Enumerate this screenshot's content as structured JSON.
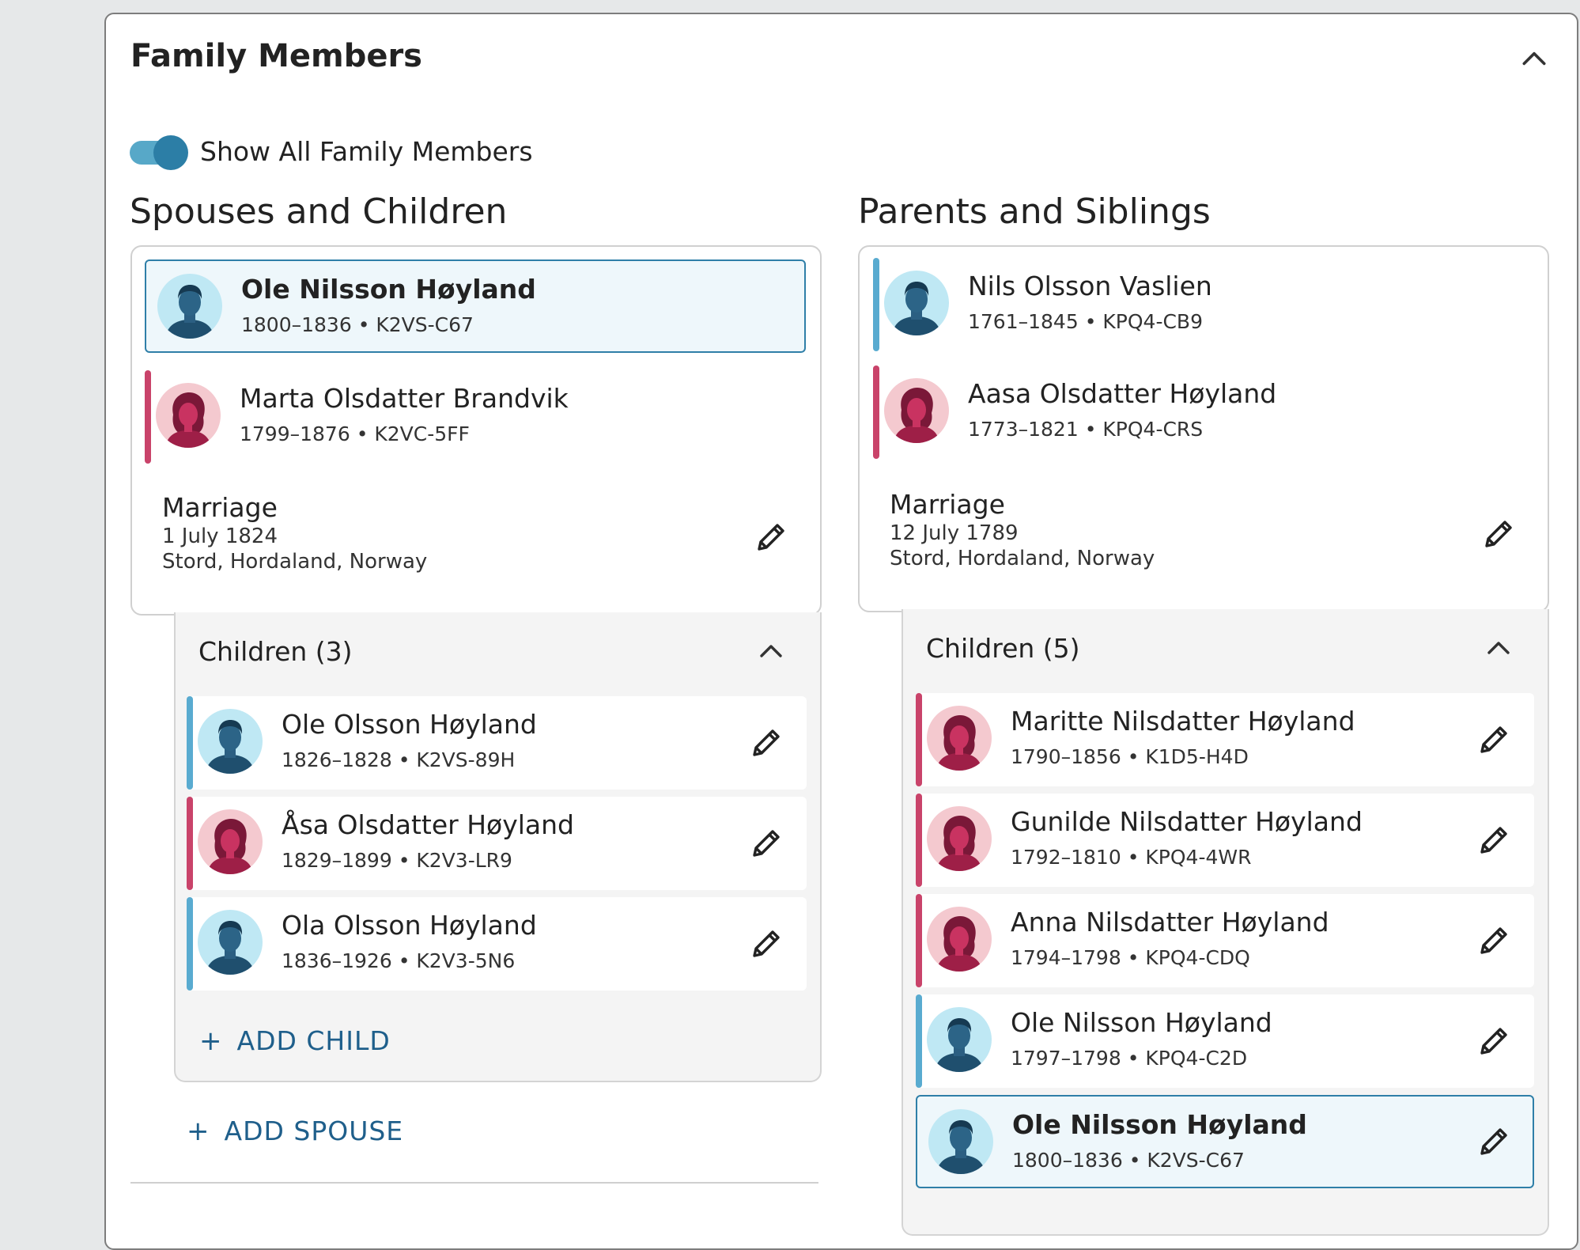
{
  "panel": {
    "title": "Family Members",
    "toggle_label": "Show All Family Members"
  },
  "spouses": {
    "title": "Spouses and Children",
    "couple": [
      {
        "name": "Ole Nilsson Høyland",
        "meta": "1800–1836 • K2VS-C67",
        "sex": "male",
        "selected": true
      },
      {
        "name": "Marta Olsdatter Brandvik",
        "meta": "1799–1876 • K2VC-5FF",
        "sex": "female"
      }
    ],
    "marriage": {
      "title": "Marriage",
      "date": "1 July 1824",
      "place": "Stord, Hordaland, Norway"
    },
    "children_title": "Children (3)",
    "children": [
      {
        "name": "Ole Olsson Høyland",
        "meta": "1826–1828 • K2VS-89H",
        "sex": "male"
      },
      {
        "name": "Åsa Olsdatter Høyland",
        "meta": "1829–1899 • K2V3-LR9",
        "sex": "female"
      },
      {
        "name": "Ola Olsson Høyland",
        "meta": "1836–1926 • K2V3-5N6",
        "sex": "male"
      }
    ],
    "add_child": "ADD CHILD",
    "add_spouse": "ADD SPOUSE"
  },
  "parents": {
    "title": "Parents and Siblings",
    "couple": [
      {
        "name": "Nils Olsson Vaslien",
        "meta": "1761–1845 • KPQ4-CB9",
        "sex": "male"
      },
      {
        "name": "Aasa Olsdatter Høyland",
        "meta": "1773–1821 • KPQ4-CRS",
        "sex": "female"
      }
    ],
    "marriage": {
      "title": "Marriage",
      "date": "12 July 1789",
      "place": "Stord, Hordaland, Norway"
    },
    "children_title": "Children (5)",
    "children": [
      {
        "name": "Maritte Nilsdatter Høyland",
        "meta": "1790–1856 • K1D5-H4D",
        "sex": "female"
      },
      {
        "name": "Gunilde Nilsdatter Høyland",
        "meta": "1792–1810 • KPQ4-4WR",
        "sex": "female"
      },
      {
        "name": "Anna Nilsdatter Høyland",
        "meta": "1794–1798 • KPQ4-CDQ",
        "sex": "female"
      },
      {
        "name": "Ole Nilsson Høyland",
        "meta": "1797–1798 • KPQ4-C2D",
        "sex": "male"
      },
      {
        "name": "Ole Nilsson Høyland",
        "meta": "1800–1836 • K2VS-C67",
        "sex": "male",
        "selected": true
      }
    ]
  },
  "colors": {
    "male": "#59abd0",
    "female": "#c9436a",
    "link": "#1f5f8b",
    "selected_border": "#2f7fa8"
  }
}
